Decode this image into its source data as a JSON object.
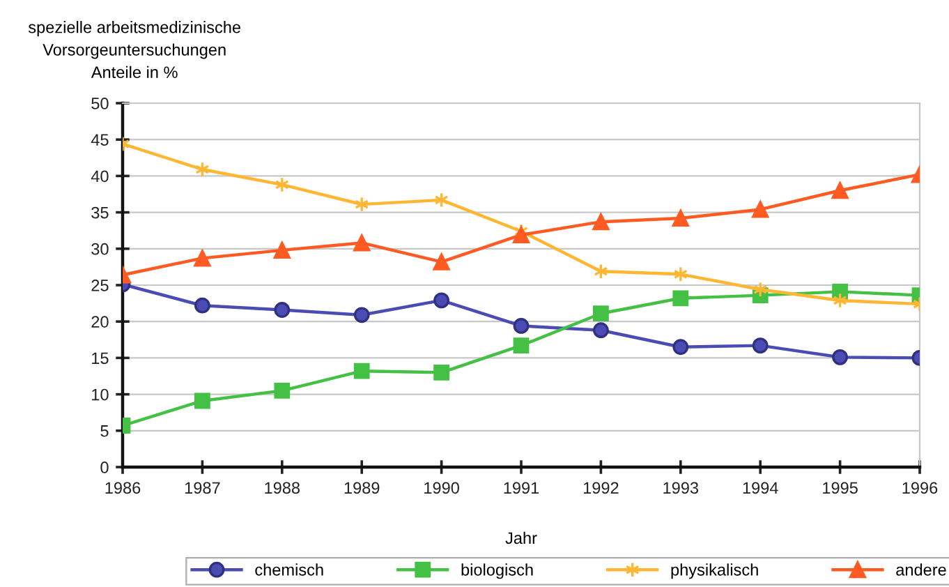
{
  "chart_data": {
    "type": "line",
    "ylabel": "spezielle arbeitsmedizinische\nVorsorgeuntersuchungen\nAnteile in %",
    "xlabel": "Jahr",
    "x": [
      1986,
      1987,
      1988,
      1989,
      1990,
      1991,
      1992,
      1993,
      1994,
      1995,
      1996
    ],
    "series": [
      {
        "name": "chemisch",
        "color": "#4b4bb4",
        "marker": "circle",
        "values": [
          25.1,
          22.2,
          21.6,
          20.9,
          22.9,
          19.4,
          18.8,
          16.5,
          16.7,
          15.1,
          15.0
        ]
      },
      {
        "name": "biologisch",
        "color": "#44c044",
        "marker": "square",
        "values": [
          5.7,
          9.1,
          10.5,
          13.2,
          13.0,
          16.7,
          21.1,
          23.2,
          23.6,
          24.1,
          23.6
        ]
      },
      {
        "name": "physikalisch",
        "color": "#ffb733",
        "marker": "cross",
        "values": [
          44.4,
          40.9,
          38.8,
          36.1,
          36.7,
          32.4,
          26.9,
          26.5,
          24.4,
          22.9,
          22.4
        ]
      },
      {
        "name": "andere",
        "color": "#ff5a22",
        "marker": "triangle",
        "values": [
          26.4,
          28.7,
          29.8,
          30.8,
          28.2,
          31.9,
          33.7,
          34.2,
          35.4,
          38.0,
          40.2
        ]
      }
    ],
    "xlim": [
      1986,
      1996
    ],
    "xticks": [
      1986,
      1987,
      1988,
      1989,
      1990,
      1991,
      1992,
      1993,
      1994,
      1995,
      1996
    ],
    "ylim": [
      0,
      50
    ],
    "yticks": [
      0,
      5,
      10,
      15,
      20,
      25,
      30,
      35,
      40,
      45,
      50
    ],
    "grid": "y",
    "legend": "bottom",
    "line_style": "solid"
  }
}
